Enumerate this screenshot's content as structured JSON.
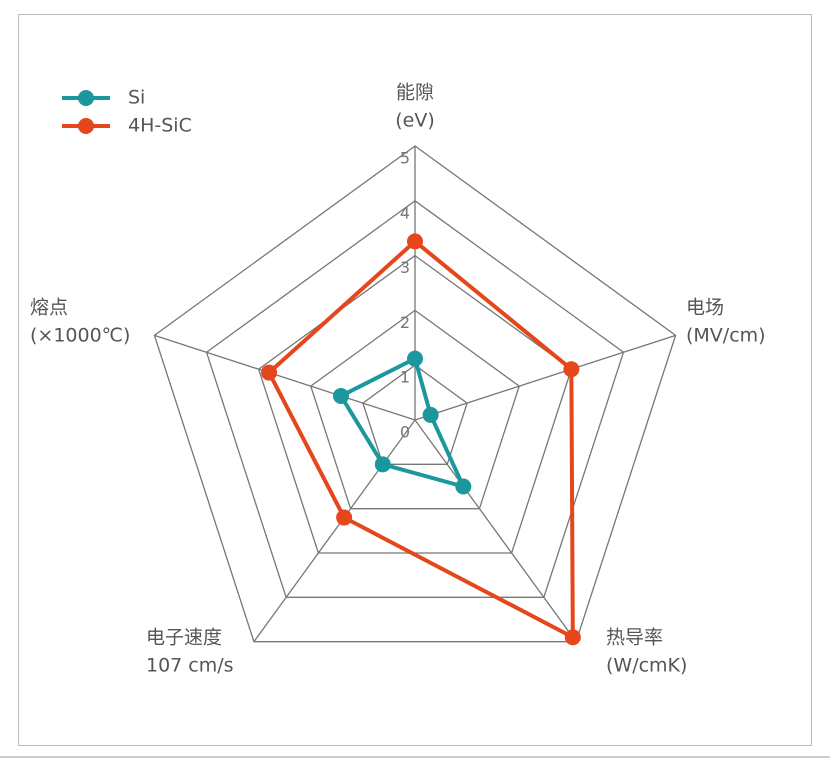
{
  "chart_data": {
    "type": "radar",
    "categories": [
      [
        "能隙",
        "(eV)"
      ],
      [
        "电场",
        "(MV/cm)"
      ],
      [
        "热导率",
        "(W/cmK)"
      ],
      [
        "电子速度",
        "107 cm/s"
      ],
      [
        "熔点",
        "(×1000℃)"
      ]
    ],
    "series": [
      {
        "name": "Si",
        "color": "#1b979d",
        "values": [
          1.12,
          0.3,
          1.5,
          1.0,
          1.42
        ]
      },
      {
        "name": "4H-SiC",
        "color": "#e5461b",
        "values": [
          3.26,
          3.0,
          4.9,
          2.2,
          2.8
        ]
      }
    ],
    "ylim": [
      0,
      5
    ],
    "yticks": [
      0,
      1,
      2,
      3,
      4,
      5
    ],
    "grid": true,
    "legend": "top-left"
  }
}
